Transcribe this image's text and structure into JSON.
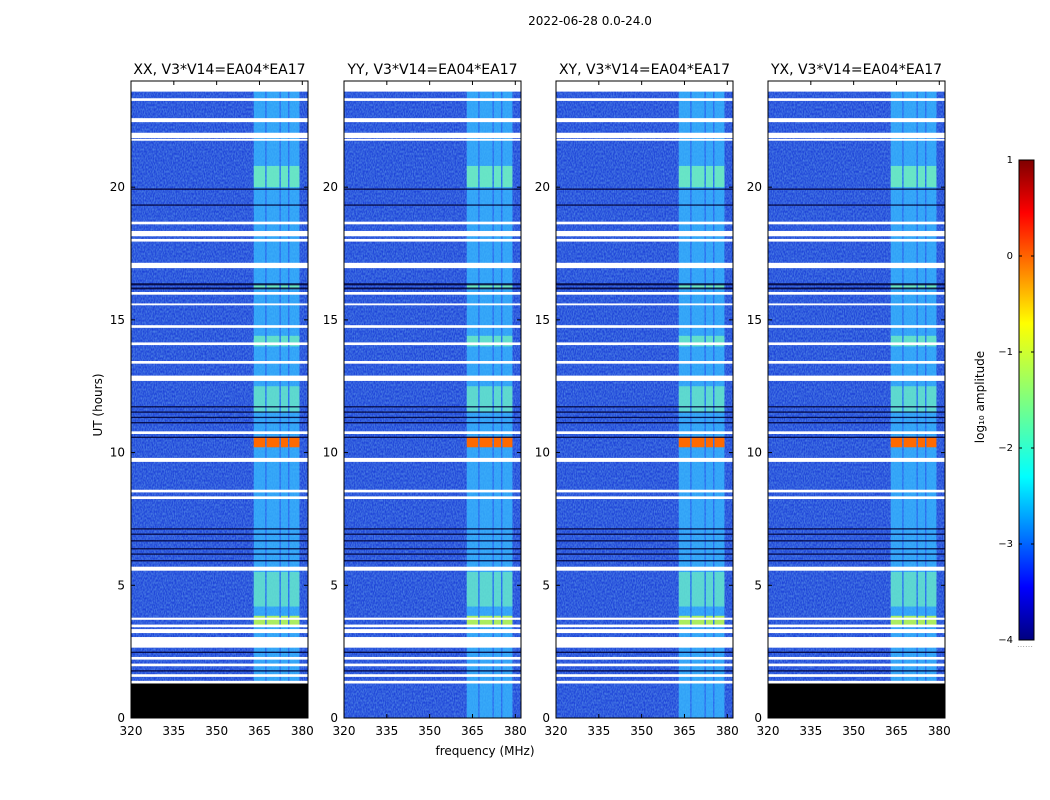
{
  "figure_title": "2022-06-28 0.0-24.0",
  "chart_data": {
    "type": "heatmap",
    "xlabel": "frequency (MHz)",
    "ylabel": "UT (hours)",
    "xlim": [
      320,
      382
    ],
    "ylim": [
      0,
      24
    ],
    "xticks": [
      320,
      335,
      350,
      365,
      380
    ],
    "yticks": [
      0,
      5,
      10,
      15,
      20
    ],
    "colorbar": {
      "label": "log₁₀ amplitude",
      "range": [
        -4,
        1
      ],
      "ticks": [
        1,
        0,
        -1,
        -2,
        -3,
        -4
      ],
      "colormap": "jet",
      "extra": "……"
    },
    "rfi_band_mhz": [
      363,
      379
    ],
    "rfi_channels_mhz": [
      [
        363,
        367
      ],
      [
        367.5,
        372
      ],
      [
        372.5,
        375
      ],
      [
        375.5,
        379
      ]
    ],
    "flagged_rows_ut": [
      [
        23.25,
        23.35
      ],
      [
        22.45,
        22.6
      ],
      [
        21.85,
        22.05
      ],
      [
        21.75,
        21.82
      ],
      [
        18.6,
        18.7
      ],
      [
        18.15,
        18.35
      ],
      [
        17.95,
        18.05
      ],
      [
        16.95,
        17.15
      ],
      [
        15.95,
        16.05
      ],
      [
        15.55,
        15.62
      ],
      [
        14.7,
        14.8
      ],
      [
        14.05,
        14.15
      ],
      [
        13.35,
        13.45
      ],
      [
        12.7,
        12.9
      ],
      [
        10.7,
        10.8
      ],
      [
        9.65,
        9.8
      ],
      [
        8.5,
        8.6
      ],
      [
        8.25,
        8.35
      ],
      [
        5.55,
        5.7
      ],
      [
        3.7,
        3.78
      ],
      [
        3.42,
        3.52
      ],
      [
        3.2,
        3.35
      ],
      [
        2.65,
        3.05
      ],
      [
        2.2,
        2.3
      ],
      [
        1.95,
        2.05
      ],
      [
        1.55,
        1.65
      ],
      [
        1.3,
        1.4
      ]
    ],
    "black_rows_ut": [
      [
        19.9,
        19.95
      ],
      [
        19.3,
        19.35
      ],
      [
        16.3,
        16.38
      ],
      [
        16.15,
        16.22
      ],
      [
        11.7,
        11.75
      ],
      [
        11.5,
        11.55
      ],
      [
        11.3,
        11.35
      ],
      [
        11.1,
        11.15
      ],
      [
        10.55,
        10.6
      ],
      [
        7.1,
        7.15
      ],
      [
        6.9,
        6.95
      ],
      [
        6.65,
        6.7
      ],
      [
        6.35,
        6.4
      ],
      [
        6.15,
        6.2
      ],
      [
        5.9,
        5.95
      ],
      [
        2.45,
        2.5
      ],
      [
        1.75,
        1.8
      ]
    ],
    "bright_rows_ut": [
      [
        10.2,
        10.6,
        0.75
      ],
      [
        3.5,
        3.85,
        0.55
      ],
      [
        20.0,
        20.8,
        0.45
      ],
      [
        16.15,
        16.35,
        0.5
      ],
      [
        14.0,
        14.4,
        0.38
      ],
      [
        11.5,
        12.5,
        0.32
      ],
      [
        4.2,
        5.5,
        0.3
      ]
    ],
    "panels": [
      {
        "title": "XX, V3*V14=EA04*EA17",
        "blank_ut": [
          0,
          1.3
        ]
      },
      {
        "title": "YY, V3*V14=EA04*EA17",
        "blank_ut": null
      },
      {
        "title": "XY, V3*V14=EA04*EA17",
        "blank_ut": null
      },
      {
        "title": "YX, V3*V14=EA04*EA17",
        "blank_ut": [
          0,
          1.3
        ]
      }
    ]
  }
}
